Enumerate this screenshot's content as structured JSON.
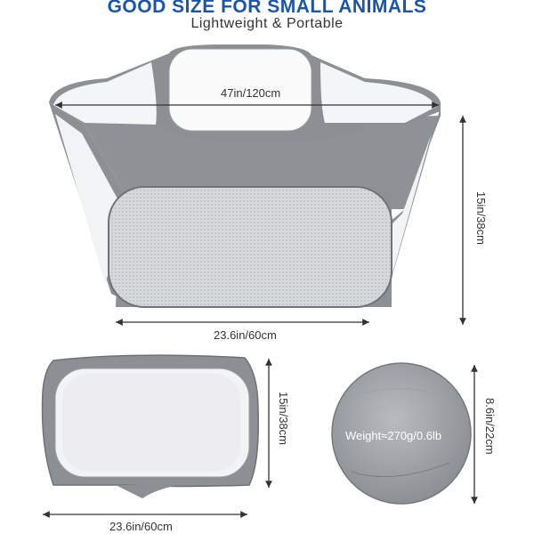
{
  "header": {
    "title": "GOOD SIZE FOR SMALL ANIMALS",
    "subtitle": "Lightweight & Portable"
  },
  "main_view": {
    "diameter_label": "47in/120cm",
    "height_label": "15in/38cm",
    "width_label": "23.6in/60cm"
  },
  "folded_view": {
    "height_label": "15in/38cm",
    "width_label": "23.6in/60cm"
  },
  "carry_bag": {
    "diameter_label": "8.6in/22cm",
    "weight_label": "Weight≈270g/0.6lb"
  },
  "colors": {
    "title": "#1a55a8",
    "fabric": "#8c9095",
    "fabric_light": "#a9acb0",
    "mesh": "#f7f8f9"
  }
}
